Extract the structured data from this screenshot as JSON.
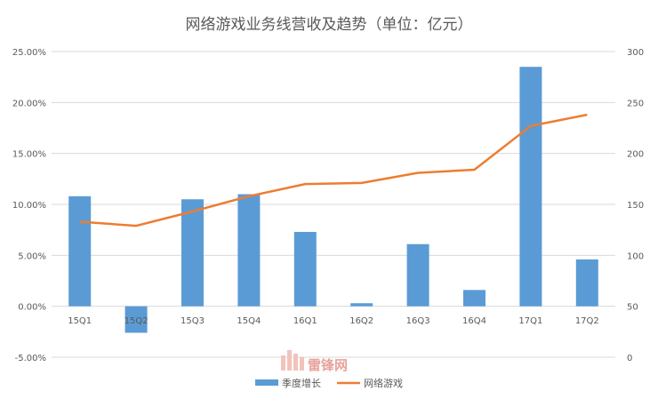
{
  "chart_data": {
    "type": "bar+line",
    "title": "网络游戏业务线营收及趋势（单位：亿元）",
    "categories": [
      "15Q1",
      "15Q2",
      "15Q3",
      "15Q4",
      "16Q1",
      "16Q2",
      "16Q3",
      "16Q4",
      "17Q1",
      "17Q2"
    ],
    "series": [
      {
        "name": "季度增长",
        "type": "bar",
        "axis": "left",
        "color": "#5b9bd5",
        "values": [
          0.108,
          -0.026,
          0.105,
          0.11,
          0.073,
          0.003,
          0.061,
          0.016,
          0.235,
          0.046
        ]
      },
      {
        "name": "网络游戏",
        "type": "line",
        "axis": "right",
        "color": "#ed7d31",
        "values": [
          133,
          129,
          143,
          158,
          170,
          171,
          181,
          184,
          227,
          238
        ]
      }
    ],
    "y_left": {
      "ylim": [
        -0.05,
        0.25
      ],
      "ticks": [
        "-5.00%",
        "0.00%",
        "5.00%",
        "10.00%",
        "15.00%",
        "20.00%",
        "25.00%"
      ],
      "tick_values": [
        -0.05,
        0,
        0.05,
        0.1,
        0.15,
        0.2,
        0.25
      ]
    },
    "y_right": {
      "ylim": [
        0,
        300
      ],
      "ticks": [
        "0",
        "50",
        "100",
        "150",
        "200",
        "250",
        "300"
      ],
      "tick_values": [
        0,
        50,
        100,
        150,
        200,
        250,
        300
      ]
    },
    "grid": true,
    "legend_position": "bottom"
  },
  "watermark": {
    "text": "雷锋网"
  }
}
